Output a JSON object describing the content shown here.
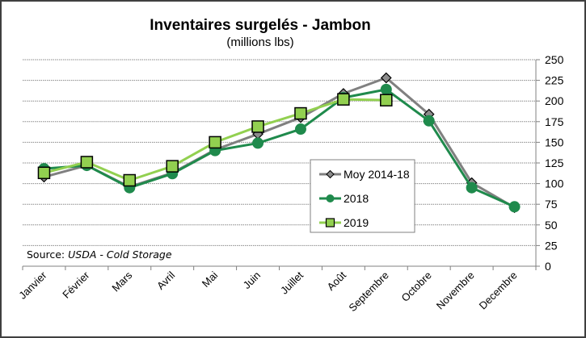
{
  "chart_data": {
    "type": "line",
    "title": "Inventaires surgelés - Jambon",
    "subtitle": "(millions lbs)",
    "source_label": "Source: ",
    "source_value": "USDA - Cold Storage",
    "xlabel": "",
    "ylabel": "",
    "ylim": [
      0,
      250
    ],
    "yticks": [
      0,
      25,
      50,
      75,
      100,
      125,
      150,
      175,
      200,
      225,
      250
    ],
    "ytick_labels": [
      "0",
      "25",
      "50",
      "75",
      "100",
      "125",
      "150",
      "175",
      "200",
      "225",
      "250"
    ],
    "y_axis_side": "right",
    "grid": true,
    "legend_position": "center-right",
    "categories": [
      "Janvier",
      "Février",
      "Mars",
      "Avril",
      "Mai",
      "Juin",
      "Juillet",
      "Août",
      "Septembre",
      "Octobre",
      "Novembre",
      "Decembre"
    ],
    "series": [
      {
        "name": "Moy 2014-18",
        "color": "#808080",
        "marker": "diamond",
        "marker_fill": "#8c8c8c",
        "values": [
          108,
          122,
          96,
          113,
          141,
          160,
          180,
          209,
          228,
          184,
          101,
          71
        ]
      },
      {
        "name": "2018",
        "color": "#1f8a4c",
        "marker": "circle",
        "marker_fill": "#1f8a4c",
        "values": [
          118,
          122,
          95,
          112,
          140,
          149,
          166,
          204,
          214,
          176,
          95,
          72
        ]
      },
      {
        "name": "2019",
        "color": "#92d050",
        "marker": "square",
        "marker_fill": "#92d050",
        "values": [
          113,
          126,
          104,
          121,
          150,
          169,
          185,
          202,
          201,
          null,
          null,
          null
        ]
      }
    ]
  }
}
